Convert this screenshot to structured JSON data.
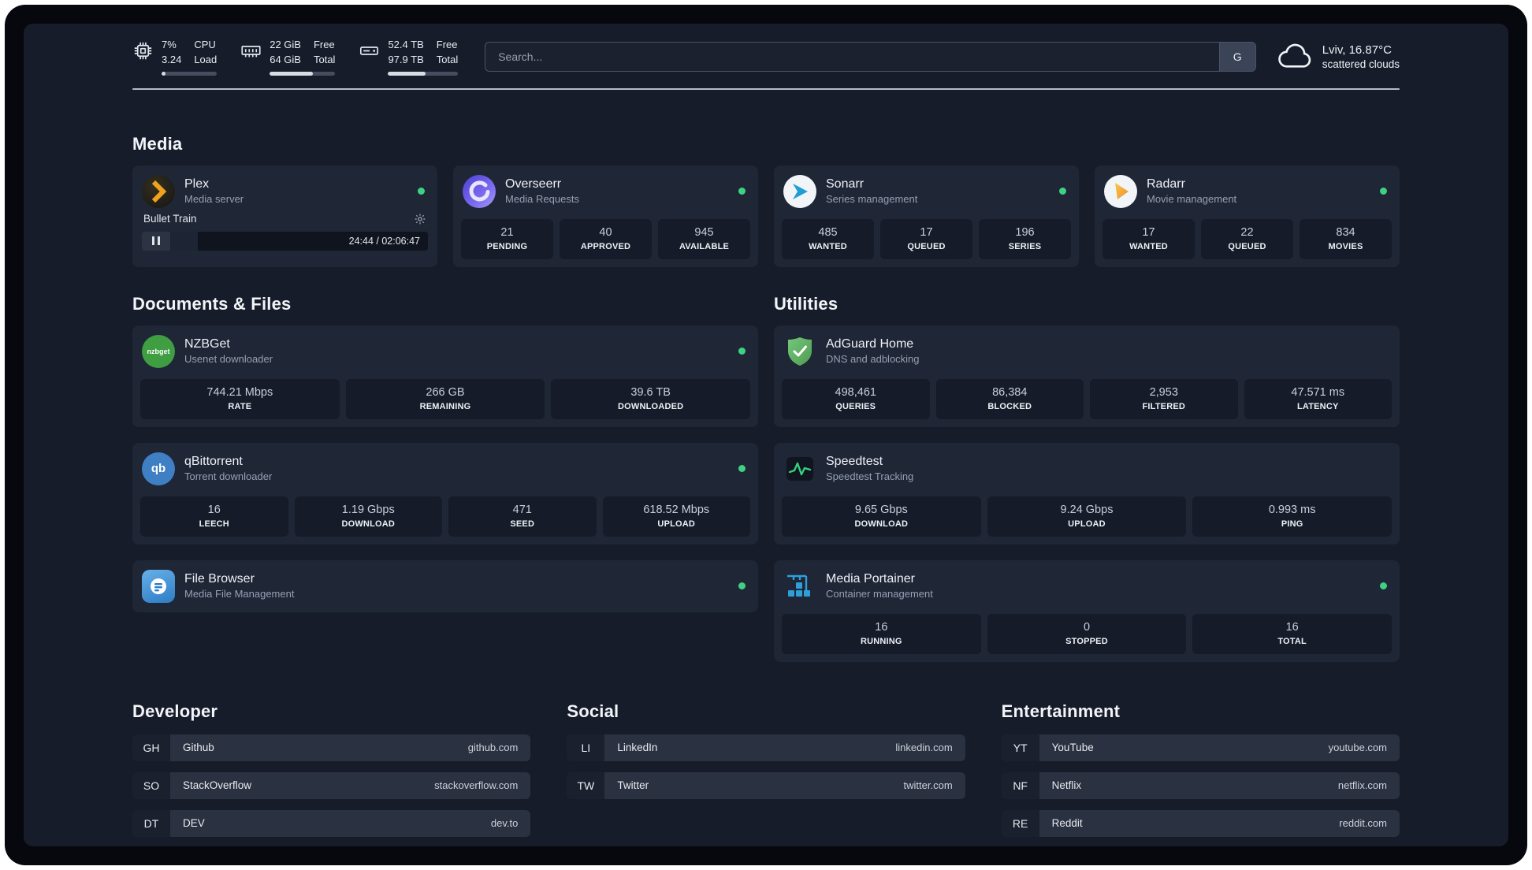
{
  "topbar": {
    "cpu": {
      "val1": "7%",
      "val2": "3.24",
      "lab1": "CPU",
      "lab2": "Load",
      "progress": 7
    },
    "memory": {
      "val1": "22 GiB",
      "val2": "64 GiB",
      "lab1": "Free",
      "lab2": "Total",
      "progress": 66
    },
    "disk": {
      "val1": "52.4 TB",
      "val2": "97.9 TB",
      "lab1": "Free",
      "lab2": "Total",
      "progress": 54
    },
    "search": {
      "placeholder": "Search...",
      "provider_label": "G"
    },
    "weather": {
      "location": "Lviv, 16.87°C",
      "condition": "scattered clouds"
    }
  },
  "media": {
    "title": "Media",
    "plex": {
      "title": "Plex",
      "subtitle": "Media server",
      "now_playing": "Bullet Train",
      "time": "24:44 / 02:06:47",
      "progress": 19.5
    },
    "overseerr": {
      "title": "Overseerr",
      "subtitle": "Media Requests",
      "stats": [
        {
          "value": "21",
          "label": "PENDING"
        },
        {
          "value": "40",
          "label": "APPROVED"
        },
        {
          "value": "945",
          "label": "AVAILABLE"
        }
      ]
    },
    "sonarr": {
      "title": "Sonarr",
      "subtitle": "Series management",
      "stats": [
        {
          "value": "485",
          "label": "WANTED"
        },
        {
          "value": "17",
          "label": "QUEUED"
        },
        {
          "value": "196",
          "label": "SERIES"
        }
      ]
    },
    "radarr": {
      "title": "Radarr",
      "subtitle": "Movie management",
      "stats": [
        {
          "value": "17",
          "label": "WANTED"
        },
        {
          "value": "22",
          "label": "QUEUED"
        },
        {
          "value": "834",
          "label": "MOVIES"
        }
      ]
    }
  },
  "documents": {
    "title": "Documents & Files",
    "nzbget": {
      "title": "NZBGet",
      "subtitle": "Usenet downloader",
      "icon_text": "nzbget",
      "stats": [
        {
          "value": "744.21 Mbps",
          "label": "RATE"
        },
        {
          "value": "266 GB",
          "label": "REMAINING"
        },
        {
          "value": "39.6 TB",
          "label": "DOWNLOADED"
        }
      ]
    },
    "qbittorrent": {
      "title": "qBittorrent",
      "subtitle": "Torrent downloader",
      "icon_text": "qb",
      "stats": [
        {
          "value": "16",
          "label": "LEECH"
        },
        {
          "value": "1.19 Gbps",
          "label": "DOWNLOAD"
        },
        {
          "value": "471",
          "label": "SEED"
        },
        {
          "value": "618.52 Mbps",
          "label": "UPLOAD"
        }
      ]
    },
    "filebrowser": {
      "title": "File Browser",
      "subtitle": "Media File Management"
    }
  },
  "utilities": {
    "title": "Utilities",
    "adguard": {
      "title": "AdGuard Home",
      "subtitle": "DNS and adblocking",
      "stats": [
        {
          "value": "498,461",
          "label": "QUERIES"
        },
        {
          "value": "86,384",
          "label": "BLOCKED"
        },
        {
          "value": "2,953",
          "label": "FILTERED"
        },
        {
          "value": "47.571 ms",
          "label": "LATENCY"
        }
      ]
    },
    "speedtest": {
      "title": "Speedtest",
      "subtitle": "Speedtest Tracking",
      "stats": [
        {
          "value": "9.65 Gbps",
          "label": "DOWNLOAD"
        },
        {
          "value": "9.24 Gbps",
          "label": "UPLOAD"
        },
        {
          "value": "0.993 ms",
          "label": "PING"
        }
      ]
    },
    "portainer": {
      "title": "Media Portainer",
      "subtitle": "Container management",
      "stats": [
        {
          "value": "16",
          "label": "RUNNING"
        },
        {
          "value": "0",
          "label": "STOPPED"
        },
        {
          "value": "16",
          "label": "TOTAL"
        }
      ]
    }
  },
  "bookmarks": [
    {
      "title": "Developer",
      "items": [
        {
          "abbr": "GH",
          "name": "Github",
          "url": "github.com"
        },
        {
          "abbr": "SO",
          "name": "StackOverflow",
          "url": "stackoverflow.com"
        },
        {
          "abbr": "DT",
          "name": "DEV",
          "url": "dev.to"
        }
      ]
    },
    {
      "title": "Social",
      "items": [
        {
          "abbr": "LI",
          "name": "LinkedIn",
          "url": "linkedin.com"
        },
        {
          "abbr": "TW",
          "name": "Twitter",
          "url": "twitter.com"
        }
      ]
    },
    {
      "title": "Entertainment",
      "items": [
        {
          "abbr": "YT",
          "name": "YouTube",
          "url": "youtube.com"
        },
        {
          "abbr": "NF",
          "name": "Netflix",
          "url": "netflix.com"
        },
        {
          "abbr": "RE",
          "name": "Reddit",
          "url": "reddit.com"
        }
      ]
    }
  ],
  "colors": {
    "status_online": "#3ed184"
  }
}
